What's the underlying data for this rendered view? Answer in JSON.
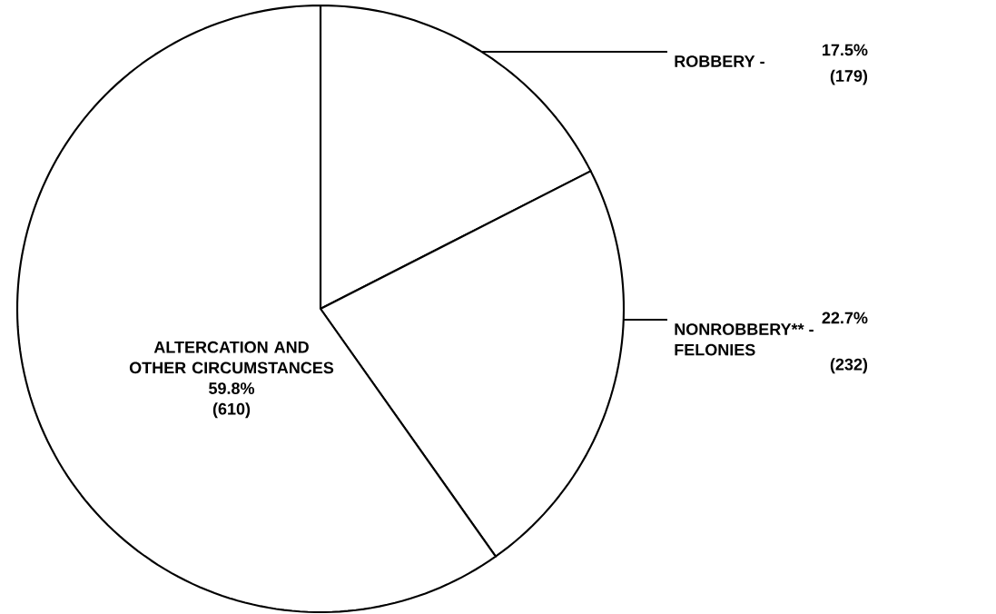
{
  "chart_data": {
    "type": "pie",
    "categories": [
      "ROBBERY -",
      "NONROBBERY** - FELONIES",
      "ALTERCATION AND OTHER CIRCUMSTANCES"
    ],
    "values": [
      17.5,
      22.7,
      59.8
    ],
    "value_labels": [
      "17.5%",
      "22.7%",
      "59.8%"
    ],
    "colors": [
      "#ffffff",
      "#ffffff",
      "#ffffff"
    ],
    "annotations": [
      "(179)",
      "(232)",
      "(610)"
    ]
  }
}
